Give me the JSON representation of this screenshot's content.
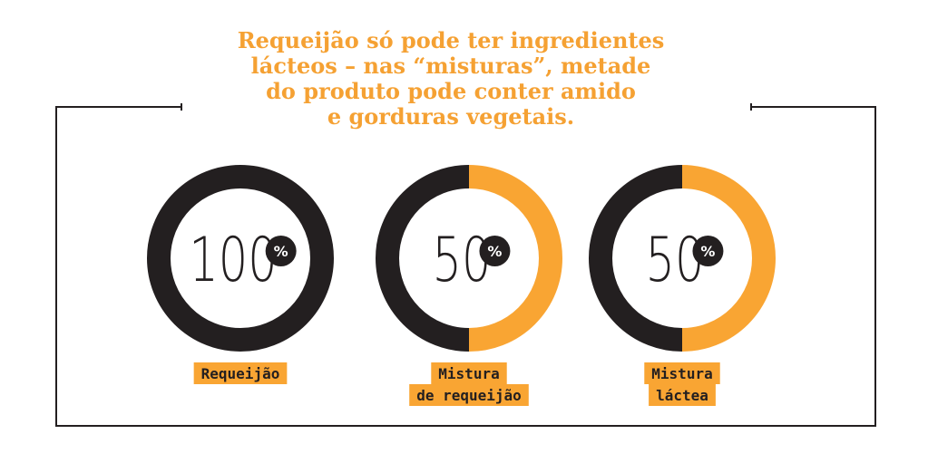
{
  "title_lines": [
    "Requeijão só pode ter ingredientes",
    "lácteos – nas “misturas”, metade",
    "do produto pode conter amido",
    "e gorduras vegetais."
  ],
  "chart_data": [
    {
      "type": "donut",
      "values": [
        100
      ],
      "colors": [
        "#231f20"
      ],
      "center_label": "100",
      "center_unit": "%",
      "label_lines": [
        "Requeijão"
      ]
    },
    {
      "type": "donut",
      "values": [
        50,
        50
      ],
      "colors": [
        "#231f20",
        "#f9a533"
      ],
      "center_label": "50",
      "center_unit": "%",
      "label_lines": [
        "Mistura",
        "de requeijão"
      ]
    },
    {
      "type": "donut",
      "values": [
        50,
        50
      ],
      "colors": [
        "#231f20",
        "#f9a533"
      ],
      "center_label": "50",
      "center_unit": "%",
      "label_lines": [
        "Mistura",
        "láctea"
      ]
    }
  ]
}
